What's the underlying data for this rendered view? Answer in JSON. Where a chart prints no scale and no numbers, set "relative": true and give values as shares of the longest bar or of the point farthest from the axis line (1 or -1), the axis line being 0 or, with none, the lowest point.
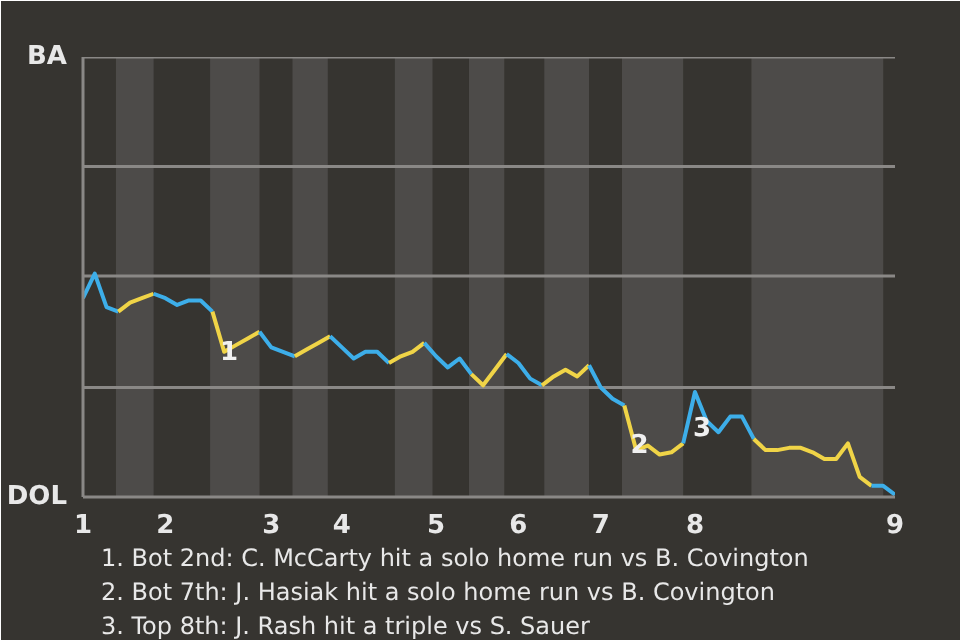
{
  "chart_data": {
    "type": "line",
    "relative": true,
    "categories": [
      "1",
      null,
      null,
      null,
      null,
      null,
      null,
      "2",
      null,
      null,
      null,
      null,
      null,
      null,
      null,
      null,
      "3",
      null,
      null,
      null,
      null,
      null,
      "4",
      null,
      null,
      null,
      null,
      null,
      null,
      null,
      "5",
      null,
      null,
      null,
      null,
      null,
      null,
      "6",
      null,
      null,
      null,
      null,
      null,
      null,
      "7",
      null,
      null,
      null,
      null,
      null,
      null,
      null,
      "8",
      null,
      null,
      null,
      null,
      null,
      null,
      null,
      null,
      null,
      null,
      null,
      null,
      null,
      null,
      null,
      null,
      "9"
    ],
    "line_style": "solid",
    "ref_lines": [
      {
        "axis": "y",
        "value": 0.49,
        "color": "#8a8886"
      },
      {
        "axis": "y",
        "value": 0.99,
        "color": "#8a8886"
      },
      {
        "axis": "y",
        "value": 1.48,
        "color": "#8a8886"
      },
      {
        "axis": "y",
        "value": 1.97,
        "color": "#8a8886"
      }
    ],
    "series": [
      {
        "color": "#3daee9",
        "values": [
          0.89,
          1,
          0.85,
          0.83,
          null,
          null,
          null,
          null,
          null,
          null,
          null,
          null,
          null,
          null,
          null,
          null,
          null,
          null,
          null,
          null,
          null,
          null,
          null,
          null,
          null,
          null,
          null,
          null,
          null,
          null,
          null,
          null,
          null,
          null,
          null,
          null,
          null,
          null,
          null,
          null,
          null,
          null,
          null,
          null,
          null,
          null,
          null,
          null,
          null,
          null,
          null,
          null,
          null,
          null,
          null,
          null,
          null,
          null,
          null,
          null,
          null,
          null,
          null,
          null,
          null,
          null,
          null,
          null,
          null,
          null
        ]
      },
      {
        "color": "#f0d447",
        "values": [
          null,
          null,
          null,
          0.83,
          0.87,
          0.89,
          0.91,
          null,
          null,
          null,
          null,
          null,
          null,
          null,
          null,
          null,
          null,
          null,
          null,
          null,
          null,
          null,
          null,
          null,
          null,
          null,
          null,
          null,
          null,
          null,
          null,
          null,
          null,
          null,
          null,
          null,
          null,
          null,
          null,
          null,
          null,
          null,
          null,
          null,
          null,
          null,
          null,
          null,
          null,
          null,
          null,
          null,
          null,
          null,
          null,
          null,
          null,
          null,
          null,
          null,
          null,
          null,
          null,
          null,
          null,
          null,
          null,
          null,
          null,
          null
        ]
      },
      {
        "color": "#3daee9",
        "values": [
          null,
          null,
          null,
          null,
          null,
          null,
          0.91,
          0.89,
          0.86,
          0.88,
          0.88,
          0.83,
          null,
          null,
          null,
          null,
          null,
          null,
          null,
          null,
          null,
          null,
          null,
          null,
          null,
          null,
          null,
          null,
          null,
          null,
          null,
          null,
          null,
          null,
          null,
          null,
          null,
          null,
          null,
          null,
          null,
          null,
          null,
          null,
          null,
          null,
          null,
          null,
          null,
          null,
          null,
          null,
          null,
          null,
          null,
          null,
          null,
          null,
          null,
          null,
          null,
          null,
          null,
          null,
          null,
          null,
          null,
          null,
          null,
          null
        ]
      },
      {
        "color": "#f0d447",
        "values": [
          null,
          null,
          null,
          null,
          null,
          null,
          null,
          null,
          null,
          null,
          null,
          0.83,
          0.65,
          0.68,
          0.71,
          0.74,
          null,
          null,
          null,
          null,
          null,
          null,
          null,
          null,
          null,
          null,
          null,
          null,
          null,
          null,
          null,
          null,
          null,
          null,
          null,
          null,
          null,
          null,
          null,
          null,
          null,
          null,
          null,
          null,
          null,
          null,
          null,
          null,
          null,
          null,
          null,
          null,
          null,
          null,
          null,
          null,
          null,
          null,
          null,
          null,
          null,
          null,
          null,
          null,
          null,
          null,
          null,
          null,
          null,
          null
        ]
      },
      {
        "color": "#3daee9",
        "values": [
          null,
          null,
          null,
          null,
          null,
          null,
          null,
          null,
          null,
          null,
          null,
          null,
          null,
          null,
          null,
          0.74,
          0.67,
          0.65,
          0.63,
          null,
          null,
          null,
          null,
          null,
          null,
          null,
          null,
          null,
          null,
          null,
          null,
          null,
          null,
          null,
          null,
          null,
          null,
          null,
          null,
          null,
          null,
          null,
          null,
          null,
          null,
          null,
          null,
          null,
          null,
          null,
          null,
          null,
          null,
          null,
          null,
          null,
          null,
          null,
          null,
          null,
          null,
          null,
          null,
          null,
          null,
          null,
          null,
          null,
          null,
          null
        ]
      },
      {
        "color": "#f0d447",
        "values": [
          null,
          null,
          null,
          null,
          null,
          null,
          null,
          null,
          null,
          null,
          null,
          null,
          null,
          null,
          null,
          null,
          null,
          null,
          0.63,
          0.66,
          0.69,
          0.72,
          null,
          null,
          null,
          null,
          null,
          null,
          null,
          null,
          null,
          null,
          null,
          null,
          null,
          null,
          null,
          null,
          null,
          null,
          null,
          null,
          null,
          null,
          null,
          null,
          null,
          null,
          null,
          null,
          null,
          null,
          null,
          null,
          null,
          null,
          null,
          null,
          null,
          null,
          null,
          null,
          null,
          null,
          null,
          null,
          null,
          null,
          null,
          null
        ]
      },
      {
        "color": "#3daee9",
        "values": [
          null,
          null,
          null,
          null,
          null,
          null,
          null,
          null,
          null,
          null,
          null,
          null,
          null,
          null,
          null,
          null,
          null,
          null,
          null,
          null,
          null,
          0.72,
          0.67,
          0.62,
          0.65,
          0.65,
          0.6,
          null,
          null,
          null,
          null,
          null,
          null,
          null,
          null,
          null,
          null,
          null,
          null,
          null,
          null,
          null,
          null,
          null,
          null,
          null,
          null,
          null,
          null,
          null,
          null,
          null,
          null,
          null,
          null,
          null,
          null,
          null,
          null,
          null,
          null,
          null,
          null,
          null,
          null,
          null,
          null,
          null,
          null,
          null
        ]
      },
      {
        "color": "#f0d447",
        "values": [
          null,
          null,
          null,
          null,
          null,
          null,
          null,
          null,
          null,
          null,
          null,
          null,
          null,
          null,
          null,
          null,
          null,
          null,
          null,
          null,
          null,
          null,
          null,
          null,
          null,
          null,
          0.6,
          0.63,
          0.65,
          0.69,
          null,
          null,
          null,
          null,
          null,
          null,
          null,
          null,
          null,
          null,
          null,
          null,
          null,
          null,
          null,
          null,
          null,
          null,
          null,
          null,
          null,
          null,
          null,
          null,
          null,
          null,
          null,
          null,
          null,
          null,
          null,
          null,
          null,
          null,
          null,
          null,
          null,
          null,
          null,
          null
        ]
      },
      {
        "color": "#3daee9",
        "values": [
          null,
          null,
          null,
          null,
          null,
          null,
          null,
          null,
          null,
          null,
          null,
          null,
          null,
          null,
          null,
          null,
          null,
          null,
          null,
          null,
          null,
          null,
          null,
          null,
          null,
          null,
          null,
          null,
          null,
          0.69,
          0.63,
          0.58,
          0.62,
          0.55,
          null,
          null,
          null,
          null,
          null,
          null,
          null,
          null,
          null,
          null,
          null,
          null,
          null,
          null,
          null,
          null,
          null,
          null,
          null,
          null,
          null,
          null,
          null,
          null,
          null,
          null,
          null,
          null,
          null,
          null,
          null,
          null,
          null,
          null,
          null,
          null
        ]
      },
      {
        "color": "#f0d447",
        "values": [
          null,
          null,
          null,
          null,
          null,
          null,
          null,
          null,
          null,
          null,
          null,
          null,
          null,
          null,
          null,
          null,
          null,
          null,
          null,
          null,
          null,
          null,
          null,
          null,
          null,
          null,
          null,
          null,
          null,
          null,
          null,
          null,
          null,
          0.55,
          0.5,
          0.57,
          0.64,
          null,
          null,
          null,
          null,
          null,
          null,
          null,
          null,
          null,
          null,
          null,
          null,
          null,
          null,
          null,
          null,
          null,
          null,
          null,
          null,
          null,
          null,
          null,
          null,
          null,
          null,
          null,
          null,
          null,
          null,
          null,
          null,
          null
        ]
      },
      {
        "color": "#3daee9",
        "values": [
          null,
          null,
          null,
          null,
          null,
          null,
          null,
          null,
          null,
          null,
          null,
          null,
          null,
          null,
          null,
          null,
          null,
          null,
          null,
          null,
          null,
          null,
          null,
          null,
          null,
          null,
          null,
          null,
          null,
          null,
          null,
          null,
          null,
          null,
          null,
          null,
          0.64,
          0.6,
          0.53,
          0.5,
          null,
          null,
          null,
          null,
          null,
          null,
          null,
          null,
          null,
          null,
          null,
          null,
          null,
          null,
          null,
          null,
          null,
          null,
          null,
          null,
          null,
          null,
          null,
          null,
          null,
          null,
          null,
          null,
          null,
          null
        ]
      },
      {
        "color": "#f0d447",
        "values": [
          null,
          null,
          null,
          null,
          null,
          null,
          null,
          null,
          null,
          null,
          null,
          null,
          null,
          null,
          null,
          null,
          null,
          null,
          null,
          null,
          null,
          null,
          null,
          null,
          null,
          null,
          null,
          null,
          null,
          null,
          null,
          null,
          null,
          null,
          null,
          null,
          null,
          null,
          null,
          0.5,
          0.54,
          0.57,
          0.54,
          0.59,
          null,
          null,
          null,
          null,
          null,
          null,
          null,
          null,
          null,
          null,
          null,
          null,
          null,
          null,
          null,
          null,
          null,
          null,
          null,
          null,
          null,
          null,
          null,
          null,
          null,
          null
        ]
      },
      {
        "color": "#3daee9",
        "values": [
          null,
          null,
          null,
          null,
          null,
          null,
          null,
          null,
          null,
          null,
          null,
          null,
          null,
          null,
          null,
          null,
          null,
          null,
          null,
          null,
          null,
          null,
          null,
          null,
          null,
          null,
          null,
          null,
          null,
          null,
          null,
          null,
          null,
          null,
          null,
          null,
          null,
          null,
          null,
          null,
          null,
          null,
          null,
          0.59,
          0.49,
          0.44,
          0.41,
          null,
          null,
          null,
          null,
          null,
          null,
          null,
          null,
          null,
          null,
          null,
          null,
          null,
          null,
          null,
          null,
          null,
          null,
          null,
          null,
          null,
          null,
          null
        ]
      },
      {
        "color": "#f0d447",
        "values": [
          null,
          null,
          null,
          null,
          null,
          null,
          null,
          null,
          null,
          null,
          null,
          null,
          null,
          null,
          null,
          null,
          null,
          null,
          null,
          null,
          null,
          null,
          null,
          null,
          null,
          null,
          null,
          null,
          null,
          null,
          null,
          null,
          null,
          null,
          null,
          null,
          null,
          null,
          null,
          null,
          null,
          null,
          null,
          null,
          null,
          null,
          0.41,
          0.21,
          0.23,
          0.19,
          0.2,
          0.24,
          null,
          null,
          null,
          null,
          null,
          null,
          null,
          null,
          null,
          null,
          null,
          null,
          null,
          null,
          null,
          null,
          null,
          null
        ]
      },
      {
        "color": "#3daee9",
        "values": [
          null,
          null,
          null,
          null,
          null,
          null,
          null,
          null,
          null,
          null,
          null,
          null,
          null,
          null,
          null,
          null,
          null,
          null,
          null,
          null,
          null,
          null,
          null,
          null,
          null,
          null,
          null,
          null,
          null,
          null,
          null,
          null,
          null,
          null,
          null,
          null,
          null,
          null,
          null,
          null,
          null,
          null,
          null,
          null,
          null,
          null,
          null,
          null,
          null,
          null,
          null,
          0.24,
          0.47,
          0.34,
          0.29,
          0.36,
          0.36,
          0.26,
          null,
          null,
          null,
          null,
          null,
          null,
          null,
          null,
          null,
          null,
          null,
          null
        ]
      },
      {
        "color": "#f0d447",
        "values": [
          null,
          null,
          null,
          null,
          null,
          null,
          null,
          null,
          null,
          null,
          null,
          null,
          null,
          null,
          null,
          null,
          null,
          null,
          null,
          null,
          null,
          null,
          null,
          null,
          null,
          null,
          null,
          null,
          null,
          null,
          null,
          null,
          null,
          null,
          null,
          null,
          null,
          null,
          null,
          null,
          null,
          null,
          null,
          null,
          null,
          null,
          null,
          null,
          null,
          null,
          null,
          null,
          null,
          null,
          null,
          null,
          null,
          0.26,
          0.21,
          0.21,
          0.22,
          0.22,
          0.2,
          0.17,
          0.17,
          0.24,
          0.09,
          0.05,
          null,
          null
        ]
      },
      {
        "color": "#3daee9",
        "values": [
          null,
          null,
          null,
          null,
          null,
          null,
          null,
          null,
          null,
          null,
          null,
          null,
          null,
          null,
          null,
          null,
          null,
          null,
          null,
          null,
          null,
          null,
          null,
          null,
          null,
          null,
          null,
          null,
          null,
          null,
          null,
          null,
          null,
          null,
          null,
          null,
          null,
          null,
          null,
          null,
          null,
          null,
          null,
          null,
          null,
          null,
          null,
          null,
          null,
          null,
          null,
          null,
          null,
          null,
          null,
          null,
          null,
          null,
          null,
          null,
          null,
          null,
          null,
          null,
          null,
          null,
          null,
          0.05,
          0.05,
          0.01
        ]
      }
    ],
    "annotations": [
      "BA",
      "DOL",
      {
        "text": "1",
        "y": 0.66
      },
      {
        "text": "2",
        "y": 0.24
      },
      {
        "text": "3",
        "y": 0.32
      },
      "1. Bot 2nd: C. McCarty hit a solo home run vs B. Covington",
      "2. Bot 7th: J. Hasiak hit a solo home run vs B. Covington",
      "3. Top 8th: J. Rash hit a triple vs S. Sauer"
    ]
  }
}
